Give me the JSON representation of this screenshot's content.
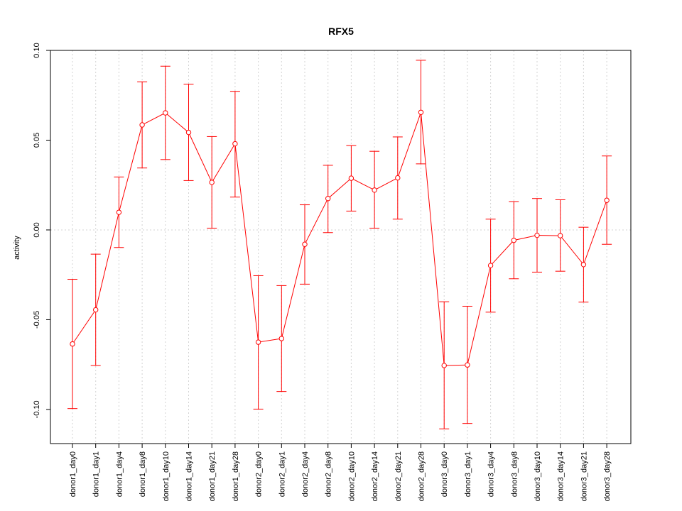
{
  "chart_data": {
    "type": "line",
    "title": "RFX5",
    "xlabel": "",
    "ylabel": "activity",
    "ylim": [
      -0.119,
      0.1
    ],
    "yticks": [
      -0.1,
      -0.05,
      0.0,
      0.05,
      0.1
    ],
    "ytick_labels": [
      "-0.10",
      "-0.05",
      "0.00",
      "0.05",
      "0.10"
    ],
    "grid": true,
    "reference_line": 0,
    "colors": {
      "series": "#ff0000",
      "grid": "#d3d3d3",
      "axis": "#000000"
    },
    "categories": [
      "donor1_day0",
      "donor1_day1",
      "donor1_day4",
      "donor1_day8",
      "donor1_day10",
      "donor1_day14",
      "donor1_day21",
      "donor1_day28",
      "donor2_day0",
      "donor2_day1",
      "donor2_day4",
      "donor2_day8",
      "donor2_day10",
      "donor2_day14",
      "donor2_day21",
      "donor2_day28",
      "donor3_day0",
      "donor3_day1",
      "donor3_day4",
      "donor3_day8",
      "donor3_day10",
      "donor3_day14",
      "donor3_day21",
      "donor3_day28"
    ],
    "series": [
      {
        "values": [
          -0.0635,
          -0.0445,
          0.0098,
          0.0585,
          0.0652,
          0.0543,
          0.0265,
          0.048,
          -0.0625,
          -0.0605,
          -0.008,
          0.0175,
          0.0288,
          0.0222,
          0.029,
          0.0655,
          -0.0755,
          -0.0752,
          -0.0198,
          -0.0058,
          -0.003,
          -0.0032,
          -0.0193,
          0.0165
        ],
        "lower": [
          -0.0995,
          -0.0755,
          -0.0098,
          0.0345,
          0.0392,
          0.0275,
          0.001,
          0.0183,
          -0.0998,
          -0.09,
          -0.0302,
          -0.0015,
          0.0105,
          0.001,
          0.006,
          0.0368,
          -0.1108,
          -0.1078,
          -0.0458,
          -0.0272,
          -0.0235,
          -0.023,
          -0.0402,
          -0.008
        ],
        "upper": [
          -0.0275,
          -0.0135,
          0.0295,
          0.0825,
          0.0912,
          0.0812,
          0.052,
          0.0772,
          -0.0255,
          -0.031,
          0.014,
          0.036,
          0.047,
          0.0438,
          0.0518,
          0.0945,
          -0.04,
          -0.0425,
          0.006,
          0.0158,
          0.0175,
          0.0168,
          0.0015,
          0.0412
        ]
      }
    ]
  }
}
